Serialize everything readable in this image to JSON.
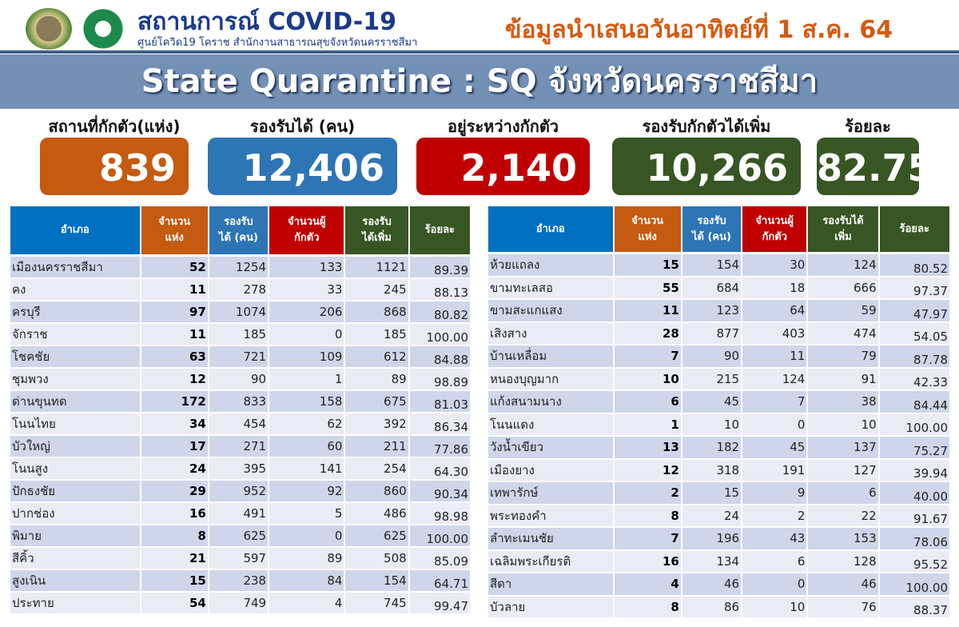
{
  "header": {
    "title": "สถานการณ์ COVID-19",
    "subtitle": "ศูนย์โควิด19 โคราช สำนักงานสาธารณสุขจังหวัดนครราชสีมา",
    "date_text": "ข้อมูลนำเสนอวันอาทิตย์ที่ 1 ส.ค. 64"
  },
  "banner": "State Quarantine : SQ จังหวัดนครราชสีมา",
  "stats": [
    {
      "label": "สถานที่กักตัว(แห่ง)",
      "value": "839",
      "color": "#c55a11"
    },
    {
      "label": "รองรับได้ (คน)",
      "value": "12,406",
      "color": "#2e75b6"
    },
    {
      "label": "อยู่ระหว่างกักตัว",
      "value": "2,140",
      "color": "#c00000"
    },
    {
      "label": "รองรับกักตัวได้เพิ่ม",
      "value": "10,266",
      "color": "#375623"
    },
    {
      "label": "ร้อยละ",
      "value": "82.75",
      "color": "#375623"
    }
  ],
  "header_colors": [
    "#0070c0",
    "#c55a11",
    "#2e75b6",
    "#c00000",
    "#375623",
    "#375623"
  ],
  "left_table": {
    "headers": [
      "อำเภอ",
      "จำนวน\nแห่ง",
      "รองรับ\nได้ (คน)",
      "จำนวนผู้\nกักตัว",
      "รองรับ\nได้เพิ่ม",
      "ร้อยละ"
    ],
    "rows": [
      [
        "เมืองนครราชสีมา",
        "52",
        "1254",
        "133",
        "1121",
        "89.39"
      ],
      [
        "คง",
        "11",
        "278",
        "33",
        "245",
        "88.13"
      ],
      [
        "ครบุรี",
        "97",
        "1074",
        "206",
        "868",
        "80.82"
      ],
      [
        "จักราช",
        "11",
        "185",
        "0",
        "185",
        "100.00"
      ],
      [
        "โชคชัย",
        "63",
        "721",
        "109",
        "612",
        "84.88"
      ],
      [
        "ชุมพวง",
        "12",
        "90",
        "1",
        "89",
        "98.89"
      ],
      [
        "ด่านขุนทด",
        "172",
        "833",
        "158",
        "675",
        "81.03"
      ],
      [
        "โนนไทย",
        "34",
        "454",
        "62",
        "392",
        "86.34"
      ],
      [
        "บัวใหญ่",
        "17",
        "271",
        "60",
        "211",
        "77.86"
      ],
      [
        "โนนสูง",
        "24",
        "395",
        "141",
        "254",
        "64.30"
      ],
      [
        "ปักธงชัย",
        "29",
        "952",
        "92",
        "860",
        "90.34"
      ],
      [
        "ปากช่อง",
        "16",
        "491",
        "5",
        "486",
        "98.98"
      ],
      [
        "พิมาย",
        "8",
        "625",
        "0",
        "625",
        "100.00"
      ],
      [
        "สีคิ้ว",
        "21",
        "597",
        "89",
        "508",
        "85.09"
      ],
      [
        "สูงเนิน",
        "15",
        "238",
        "84",
        "154",
        "64.71"
      ],
      [
        "ประทาย",
        "54",
        "749",
        "4",
        "745",
        "99.47"
      ]
    ]
  },
  "right_table": {
    "headers": [
      "อำเภอ",
      "จำนวน\nแห่ง",
      "รองรับ\nได้ (คน)",
      "จำนวนผู้\nกักตัว",
      "รองรับได้\nเพิ่ม",
      "ร้อยละ"
    ],
    "rows": [
      [
        "ห้วยแถลง",
        "15",
        "154",
        "30",
        "124",
        "80.52"
      ],
      [
        "ขามทะเลสอ",
        "55",
        "684",
        "18",
        "666",
        "97.37"
      ],
      [
        "ขามสะแกแสง",
        "11",
        "123",
        "64",
        "59",
        "47.97"
      ],
      [
        "เสิงสาง",
        "28",
        "877",
        "403",
        "474",
        "54.05"
      ],
      [
        "บ้านเหลื่อม",
        "7",
        "90",
        "11",
        "79",
        "87.78"
      ],
      [
        "หนองบุญมาก",
        "10",
        "215",
        "124",
        "91",
        "42.33"
      ],
      [
        "แก้งสนามนาง",
        "6",
        "45",
        "7",
        "38",
        "84.44"
      ],
      [
        "โนนแดง",
        "1",
        "10",
        "0",
        "10",
        "100.00"
      ],
      [
        "วังน้ำเขียว",
        "13",
        "182",
        "45",
        "137",
        "75.27"
      ],
      [
        "เมืองยาง",
        "12",
        "318",
        "191",
        "127",
        "39.94"
      ],
      [
        "เทพารักษ์",
        "2",
        "15",
        "9",
        "6",
        "40.00"
      ],
      [
        "พระทองคำ",
        "8",
        "24",
        "2",
        "22",
        "91.67"
      ],
      [
        "ลำทะเมนชัย",
        "7",
        "196",
        "43",
        "153",
        "78.06"
      ],
      [
        "เฉลิมพระเกียรติ",
        "16",
        "134",
        "6",
        "128",
        "95.52"
      ],
      [
        "สีดา",
        "4",
        "46",
        "0",
        "46",
        "100.00"
      ],
      [
        "บัวลาย",
        "8",
        "86",
        "10",
        "76",
        "88.37"
      ]
    ]
  }
}
